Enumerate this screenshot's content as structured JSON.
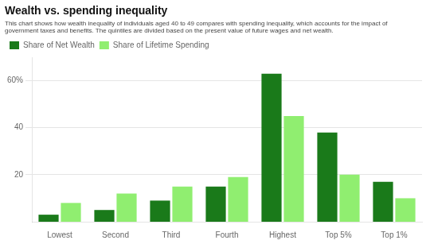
{
  "chart_data": {
    "type": "bar",
    "title": "Wealth vs. spending inequality",
    "subtitle": [
      "This chart shows how wealth inequality of individuals aged 40 to 49 compares with spending inequality, which accounts for the impact of",
      "government taxes and benefits. The quintiles are divided based on the present value of future wages and net wealth."
    ],
    "categories": [
      "Lowest",
      "Second",
      "Third",
      "Fourth",
      "Highest",
      "Top 5%",
      "Top 1%"
    ],
    "series": [
      {
        "name": "Share of Net Wealth",
        "color": "#1a7a1a",
        "values": [
          3,
          5,
          9,
          15,
          63,
          38,
          17
        ]
      },
      {
        "name": "Share of Lifetime Spending",
        "color": "#90ee70",
        "values": [
          8,
          12,
          15,
          19,
          45,
          20,
          10
        ]
      }
    ],
    "ylim": [
      0,
      70
    ],
    "yticks": [
      20,
      40,
      {
        "value": 60,
        "label": "60%"
      }
    ],
    "grid": true,
    "legend": "upper left"
  }
}
